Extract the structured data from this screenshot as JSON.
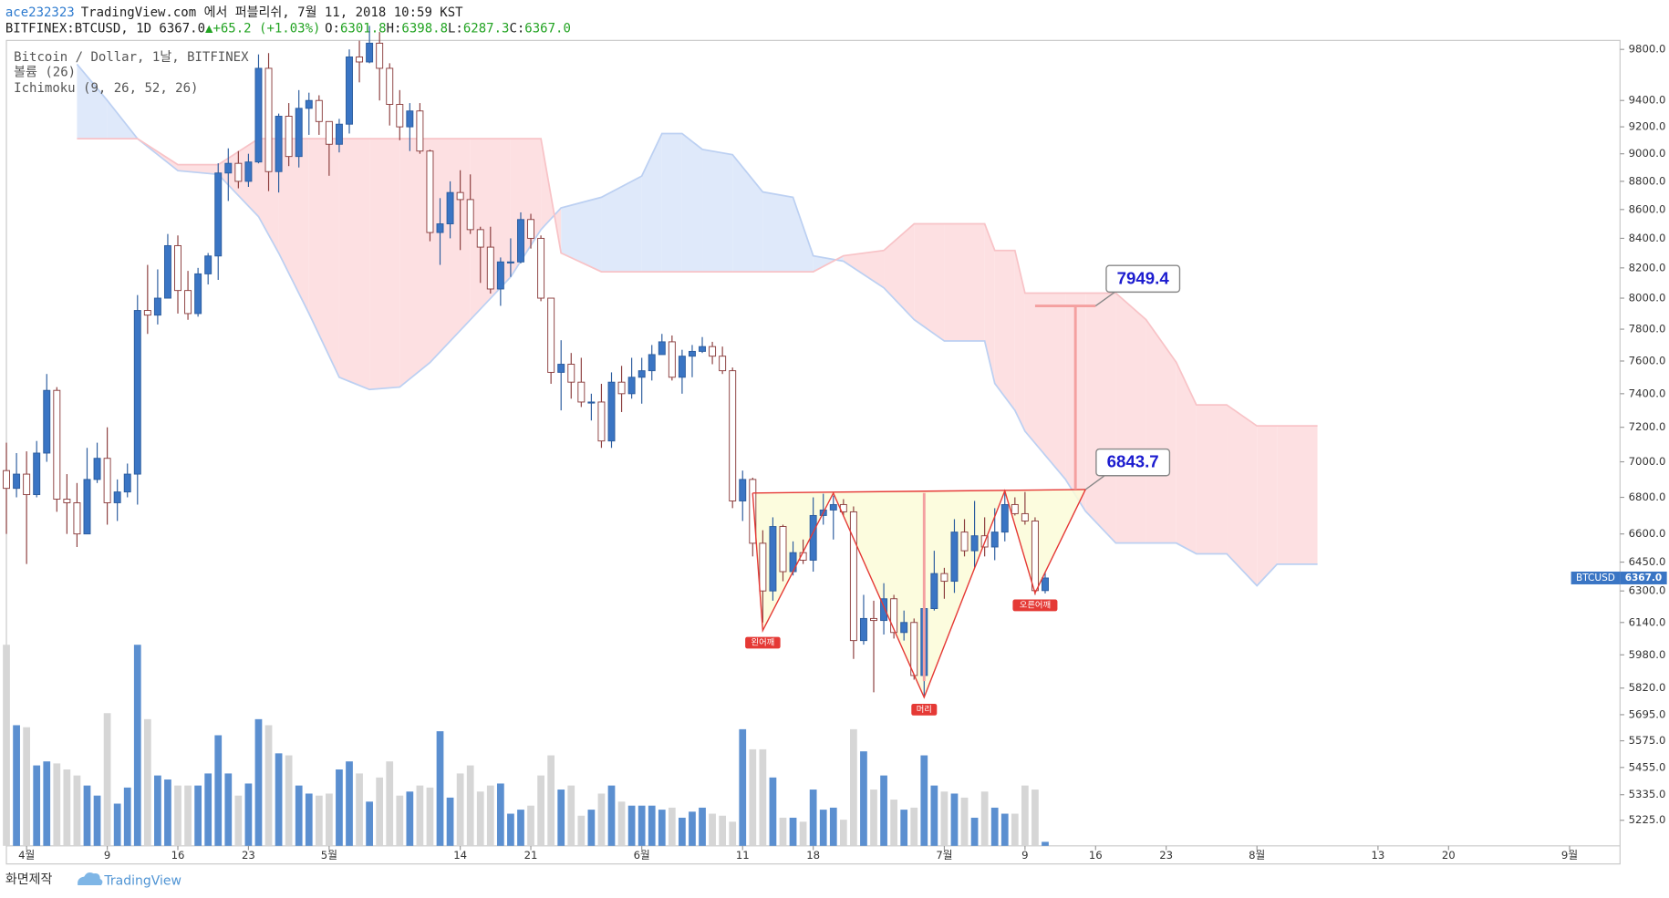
{
  "header": {
    "author": "ace232323",
    "published": "TradingView.com 에서 퍼블리쉬, 7월 11, 2018 10:59 KST",
    "symbol": "BITFINEX:BTCUSD, 1D 6367.0",
    "arrow": "▲",
    "change": "+65.2 (+1.03%)",
    "ohlc": [
      {
        "key": "O:",
        "value": "6301.8"
      },
      {
        "key": "H:",
        "value": "6398.8"
      },
      {
        "key": "L:",
        "value": "6287.3"
      },
      {
        "key": "C:",
        "value": "6367.0"
      }
    ]
  },
  "legend": [
    "Bitcoin / Dollar, 1날, BITFINEX",
    "볼륨 (26)",
    "Ichimoku (9, 26, 52, 26)"
  ],
  "footer": {
    "made_with": "화면제작",
    "brand": "TradingView"
  },
  "chart_data": {
    "type": "candlestick",
    "log_scale": true,
    "grid": false,
    "ylim": [
      5117,
      9872
    ],
    "yticks": [
      {
        "value": 9800,
        "label": "9800.0"
      },
      {
        "value": 9400,
        "label": "9400.0"
      },
      {
        "value": 9200,
        "label": "9200.0"
      },
      {
        "value": 9000,
        "label": "9000.0"
      },
      {
        "value": 8800,
        "label": "8800.0"
      },
      {
        "value": 8600,
        "label": "8600.0"
      },
      {
        "value": 8400,
        "label": "8400.0"
      },
      {
        "value": 8200,
        "label": "8200.0"
      },
      {
        "value": 8000,
        "label": "8000.0"
      },
      {
        "value": 7800,
        "label": "7800.0"
      },
      {
        "value": 7600,
        "label": "7600.0"
      },
      {
        "value": 7400,
        "label": "7400.0"
      },
      {
        "value": 7200,
        "label": "7200.0"
      },
      {
        "value": 7000,
        "label": "7000.0"
      },
      {
        "value": 6800,
        "label": "6800.0"
      },
      {
        "value": 6600,
        "label": "6600.0"
      },
      {
        "value": 6450,
        "label": "6450.0"
      },
      {
        "value": 6300,
        "label": "6300.0"
      },
      {
        "value": 6140,
        "label": "6140.0"
      },
      {
        "value": 5980,
        "label": "5980.0"
      },
      {
        "value": 5820,
        "label": "5820.0"
      },
      {
        "value": 5695,
        "label": "5695.0"
      },
      {
        "value": 5575,
        "label": "5575.0"
      },
      {
        "value": 5455,
        "label": "5455.0"
      },
      {
        "value": 5335,
        "label": "5335.0"
      },
      {
        "value": 5225,
        "label": "5225.0"
      }
    ],
    "xlim": [
      "03-30",
      "09-06"
    ],
    "xticks": [
      {
        "value": "04-01",
        "label": "4월"
      },
      {
        "value": "04-09",
        "label": "9"
      },
      {
        "value": "04-16",
        "label": "16"
      },
      {
        "value": "04-23",
        "label": "23"
      },
      {
        "value": "05-01",
        "label": "5월"
      },
      {
        "value": "05-14",
        "label": "14"
      },
      {
        "value": "05-21",
        "label": "21"
      },
      {
        "value": "06-01",
        "label": "6월"
      },
      {
        "value": "06-11",
        "label": "11"
      },
      {
        "value": "06-18",
        "label": "18"
      },
      {
        "value": "07-01",
        "label": "7월"
      },
      {
        "value": "07-09",
        "label": "9"
      },
      {
        "value": "07-16",
        "label": "16"
      },
      {
        "value": "07-23",
        "label": "23"
      },
      {
        "value": "08-01",
        "label": "8월"
      },
      {
        "value": "08-13",
        "label": "13"
      },
      {
        "value": "08-20",
        "label": "20"
      },
      {
        "value": "09-01",
        "label": "9월"
      }
    ],
    "colors": {
      "up": "#3a75c4",
      "up_border": "#2b5c9e",
      "down": "#ffffff",
      "down_border": "#8b3d3d",
      "volume_up": "#5b8fd0",
      "volume_down": "#d6d6d6",
      "cloud_up": "#dfe9fa",
      "cloud_down": "#fde0e2",
      "cloud_up_line": "#bcd0f2",
      "cloud_down_line": "#f8c3c7",
      "pattern": "#e53935",
      "pattern_fill": "#fbfbd8",
      "measure": "#f4a0a0"
    },
    "x": [
      "03-30",
      "03-31",
      "04-01",
      "04-02",
      "04-03",
      "04-04",
      "04-05",
      "04-06",
      "04-07",
      "04-08",
      "04-09",
      "04-10",
      "04-11",
      "04-12",
      "04-13",
      "04-14",
      "04-15",
      "04-16",
      "04-17",
      "04-18",
      "04-19",
      "04-20",
      "04-21",
      "04-22",
      "04-23",
      "04-24",
      "04-25",
      "04-26",
      "04-27",
      "04-28",
      "04-29",
      "04-30",
      "05-01",
      "05-02",
      "05-03",
      "05-04",
      "05-05",
      "05-06",
      "05-07",
      "05-08",
      "05-09",
      "05-10",
      "05-11",
      "05-12",
      "05-13",
      "05-14",
      "05-15",
      "05-16",
      "05-17",
      "05-18",
      "05-19",
      "05-20",
      "05-21",
      "05-22",
      "05-23",
      "05-24",
      "05-25",
      "05-26",
      "05-27",
      "05-28",
      "05-29",
      "05-30",
      "05-31",
      "06-01",
      "06-02",
      "06-03",
      "06-04",
      "06-05",
      "06-06",
      "06-07",
      "06-08",
      "06-09",
      "06-10",
      "06-11",
      "06-12",
      "06-13",
      "06-14",
      "06-15",
      "06-16",
      "06-17",
      "06-18",
      "06-19",
      "06-20",
      "06-21",
      "06-22",
      "06-23",
      "06-24",
      "06-25",
      "06-26",
      "06-27",
      "06-28",
      "06-29",
      "06-30",
      "07-01",
      "07-02",
      "07-03",
      "07-04",
      "07-05",
      "07-06",
      "07-07",
      "07-08",
      "07-09",
      "07-10",
      "07-11"
    ],
    "open": [
      6950,
      6850,
      6930,
      6815,
      7050,
      7420,
      6790,
      6770,
      6600,
      6900,
      7020,
      6770,
      6830,
      6930,
      7920,
      7890,
      8000,
      8350,
      8050,
      7900,
      8160,
      8280,
      8860,
      8930,
      8800,
      8940,
      9650,
      8870,
      9280,
      8980,
      9340,
      9400,
      9240,
      9070,
      9220,
      9740,
      9700,
      9850,
      9650,
      9370,
      9200,
      9320,
      9020,
      8440,
      8500,
      8720,
      8670,
      8460,
      8340,
      8060,
      8240,
      8240,
      8530,
      8400,
      8000,
      7530,
      7580,
      7470,
      7350,
      7350,
      7120,
      7470,
      7400,
      7500,
      7540,
      7640,
      7720,
      7500,
      7630,
      7660,
      7690,
      7630,
      7540,
      6780,
      6900,
      6550,
      6300,
      6640,
      6400,
      6500,
      6460,
      6700,
      6730,
      6760,
      6720,
      6050,
      6160,
      6150,
      6260,
      6090,
      6140,
      5880,
      6210,
      6390,
      6350,
      6610,
      6510,
      6590,
      6530,
      6610,
      6760,
      6710,
      6670,
      6301.8
    ],
    "high": [
      7110,
      7050,
      7060,
      7120,
      7520,
      7440,
      6930,
      6880,
      7080,
      7110,
      7200,
      6900,
      6990,
      8020,
      8220,
      8190,
      8430,
      8420,
      8180,
      8200,
      8300,
      8930,
      9040,
      9020,
      9000,
      9760,
      9770,
      9300,
      9380,
      9480,
      9460,
      9440,
      9240,
      9260,
      9800,
      9870,
      9990,
      9940,
      9690,
      9480,
      9380,
      9380,
      9030,
      8680,
      8800,
      8880,
      8850,
      8480,
      8480,
      8270,
      8400,
      8580,
      8570,
      8420,
      8000,
      7730,
      7650,
      7620,
      7400,
      7460,
      7530,
      7570,
      7620,
      7620,
      7700,
      7770,
      7760,
      7670,
      7700,
      7750,
      7720,
      7690,
      7560,
      6950,
      6910,
      6620,
      6690,
      6650,
      6560,
      6570,
      6800,
      6820,
      6810,
      6790,
      6750,
      6280,
      6250,
      6340,
      6280,
      6200,
      6160,
      6280,
      6510,
      6420,
      6680,
      6680,
      6780,
      6690,
      6740,
      6840,
      6800,
      6830,
      6690,
      6398.8
    ],
    "low": [
      6600,
      6800,
      6440,
      6800,
      7000,
      6720,
      6600,
      6530,
      6600,
      6880,
      6650,
      6670,
      6800,
      6760,
      7770,
      7830,
      8000,
      7900,
      7860,
      7880,
      8090,
      8120,
      8660,
      8750,
      8760,
      8930,
      8730,
      8720,
      8910,
      8900,
      9140,
      9140,
      8840,
      9010,
      9150,
      9540,
      9690,
      9400,
      9210,
      9100,
      9020,
      9000,
      8380,
      8220,
      8400,
      8320,
      8430,
      8100,
      8030,
      7950,
      8140,
      8230,
      8330,
      7980,
      7460,
      7300,
      7370,
      7320,
      7240,
      7080,
      7080,
      7290,
      7370,
      7340,
      7480,
      7640,
      7480,
      7400,
      7500,
      7650,
      7580,
      7520,
      6740,
      6670,
      6480,
      6140,
      6250,
      6350,
      6380,
      6440,
      6400,
      6650,
      6570,
      6700,
      5960,
      6030,
      5800,
      6080,
      6060,
      6050,
      5860,
      5780,
      6200,
      6260,
      6290,
      6480,
      6420,
      6480,
      6460,
      6560,
      6700,
      6650,
      6280,
      6287.3
    ],
    "close": [
      6850,
      6930,
      6815,
      7050,
      7420,
      6790,
      6770,
      6600,
      6900,
      7020,
      6770,
      6830,
      6930,
      7920,
      7890,
      8000,
      8350,
      8050,
      7900,
      8160,
      8280,
      8860,
      8930,
      8800,
      8940,
      9650,
      8870,
      9280,
      8980,
      9340,
      9400,
      9240,
      9070,
      9220,
      9740,
      9700,
      9850,
      9650,
      9370,
      9200,
      9320,
      9020,
      8440,
      8500,
      8720,
      8670,
      8460,
      8340,
      8060,
      8240,
      8240,
      8530,
      8400,
      8000,
      7530,
      7580,
      7470,
      7350,
      7350,
      7120,
      7470,
      7400,
      7500,
      7540,
      7640,
      7720,
      7500,
      7630,
      7660,
      7690,
      7630,
      7540,
      6780,
      6900,
      6550,
      6300,
      6640,
      6400,
      6500,
      6460,
      6700,
      6730,
      6760,
      6720,
      6050,
      6160,
      6150,
      6260,
      6090,
      6140,
      5880,
      6210,
      6390,
      6350,
      6610,
      6510,
      6590,
      6530,
      6610,
      6760,
      6710,
      6670,
      6301.8,
      6367
    ],
    "vlim": [
      0,
      100
    ],
    "volume": [
      100,
      60,
      59,
      40,
      42,
      41,
      38,
      35,
      30,
      25,
      66,
      21,
      29,
      100,
      63,
      35,
      33,
      30,
      30,
      30,
      36,
      55,
      36,
      25,
      31,
      63,
      60,
      46,
      45,
      30,
      26,
      25,
      26,
      38,
      42,
      36,
      22,
      34,
      42,
      25,
      27,
      30,
      29,
      57,
      24,
      36,
      40,
      27,
      30,
      31,
      16,
      18,
      20,
      35,
      45,
      28,
      30,
      15,
      18,
      26,
      30,
      22,
      20,
      20,
      20,
      18,
      19,
      14,
      17,
      19,
      16,
      15,
      12,
      58,
      48,
      48,
      34,
      14,
      14,
      12,
      28,
      18,
      19,
      13,
      58,
      47,
      28,
      35,
      23,
      18,
      19,
      45,
      30,
      27,
      26,
      24,
      14,
      27,
      19,
      16,
      16,
      30,
      28,
      2
    ],
    "cloud": {
      "x": [
        "04-06",
        "04-09",
        "04-12",
        "04-16",
        "04-20",
        "04-24",
        "04-26",
        "04-29",
        "05-02",
        "05-05",
        "05-08",
        "05-11",
        "05-15",
        "05-19",
        "05-22",
        "05-24",
        "05-28",
        "06-01",
        "06-03",
        "06-05",
        "06-07",
        "06-10",
        "06-13",
        "06-16",
        "06-18",
        "06-21",
        "06-25",
        "06-28",
        "07-01",
        "07-05",
        "07-06",
        "07-08",
        "07-09",
        "07-13",
        "07-15",
        "07-18",
        "07-21",
        "07-24",
        "07-26",
        "07-29",
        "08-01",
        "08-03",
        "08-07"
      ],
      "span_a": [
        9682,
        9400,
        9111,
        8877,
        8850,
        8550,
        8300,
        7900,
        7500,
        7425,
        7440,
        7590,
        7860,
        8140,
        8460,
        8611,
        8686,
        8838,
        9150,
        9150,
        9032,
        8993,
        8724,
        8686,
        8281,
        8245,
        8068,
        7861,
        7725,
        7725,
        7462,
        7300,
        7177,
        6901,
        6724,
        6551,
        6551,
        6551,
        6494,
        6494,
        6327,
        6439,
        6439
      ],
      "span_b": [
        9111,
        9111,
        9111,
        8920,
        8920,
        9111,
        9111,
        9111,
        9111,
        9111,
        9111,
        9111,
        9111,
        9111,
        9111,
        8300,
        8174,
        8174,
        8174,
        8174,
        8174,
        8174,
        8174,
        8174,
        8174,
        8281,
        8317,
        8500,
        8500,
        8500,
        8317,
        8317,
        8033,
        8033,
        8033,
        8033,
        7861,
        7592,
        7333,
        7333,
        7208,
        7208,
        7208
      ]
    },
    "pattern": {
      "x": [
        "06-12",
        "06-13",
        "06-20",
        "06-29",
        "07-07",
        "07-10",
        "07-15"
      ],
      "values": [
        6824,
        6100,
        6824,
        5776,
        6836,
        6289,
        6843.7
      ],
      "labels": [
        null,
        "왼어깨",
        null,
        "머리",
        null,
        "오른어깨",
        null
      ]
    },
    "measure": {
      "x": "06-29",
      "values": [
        6824,
        5853
      ]
    },
    "target_x": "07-14",
    "target_span": [
      "07-10",
      "07-16"
    ],
    "callouts": [
      {
        "value": 7949.4,
        "x": "07-16"
      },
      {
        "value": 6843.7,
        "x": "07-15"
      }
    ],
    "price_tag": {
      "name": "BTCUSD",
      "label": "6367.0"
    }
  }
}
